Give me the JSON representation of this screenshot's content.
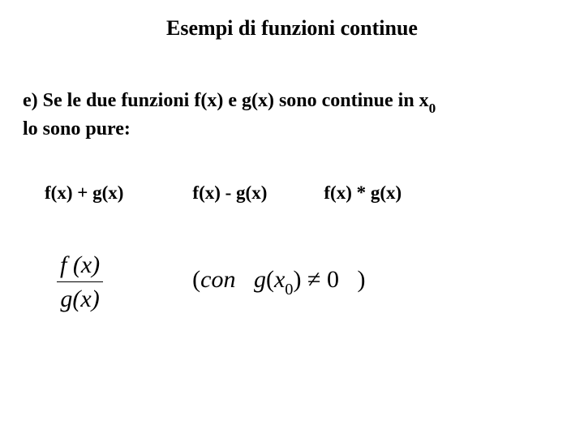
{
  "title": "Esempi di funzioni continue",
  "paragraph": {
    "line1_part1": "e) Se le due funzioni f(x) e g(x) sono continue in x",
    "line1_sub": "0",
    "line2": "lo sono pure:"
  },
  "ops": {
    "sum": "f(x) + g(x)",
    "diff": "f(x) - g(x)",
    "prod": "f(x) * g(x)"
  },
  "fraction": {
    "numer": "f (x)",
    "denom": "g(x)"
  },
  "condition": {
    "open": "(",
    "con": "con",
    "g": "g",
    "lpar": "(",
    "x": "x",
    "sub": "0",
    "rpar": ")",
    "neq": "≠",
    "zero": "0",
    "close": ")"
  },
  "style": {
    "background": "#ffffff",
    "text_color": "#000000",
    "title_fontsize": 26,
    "body_fontsize": 24,
    "formula_fontsize": 30,
    "font_family": "Times New Roman"
  }
}
